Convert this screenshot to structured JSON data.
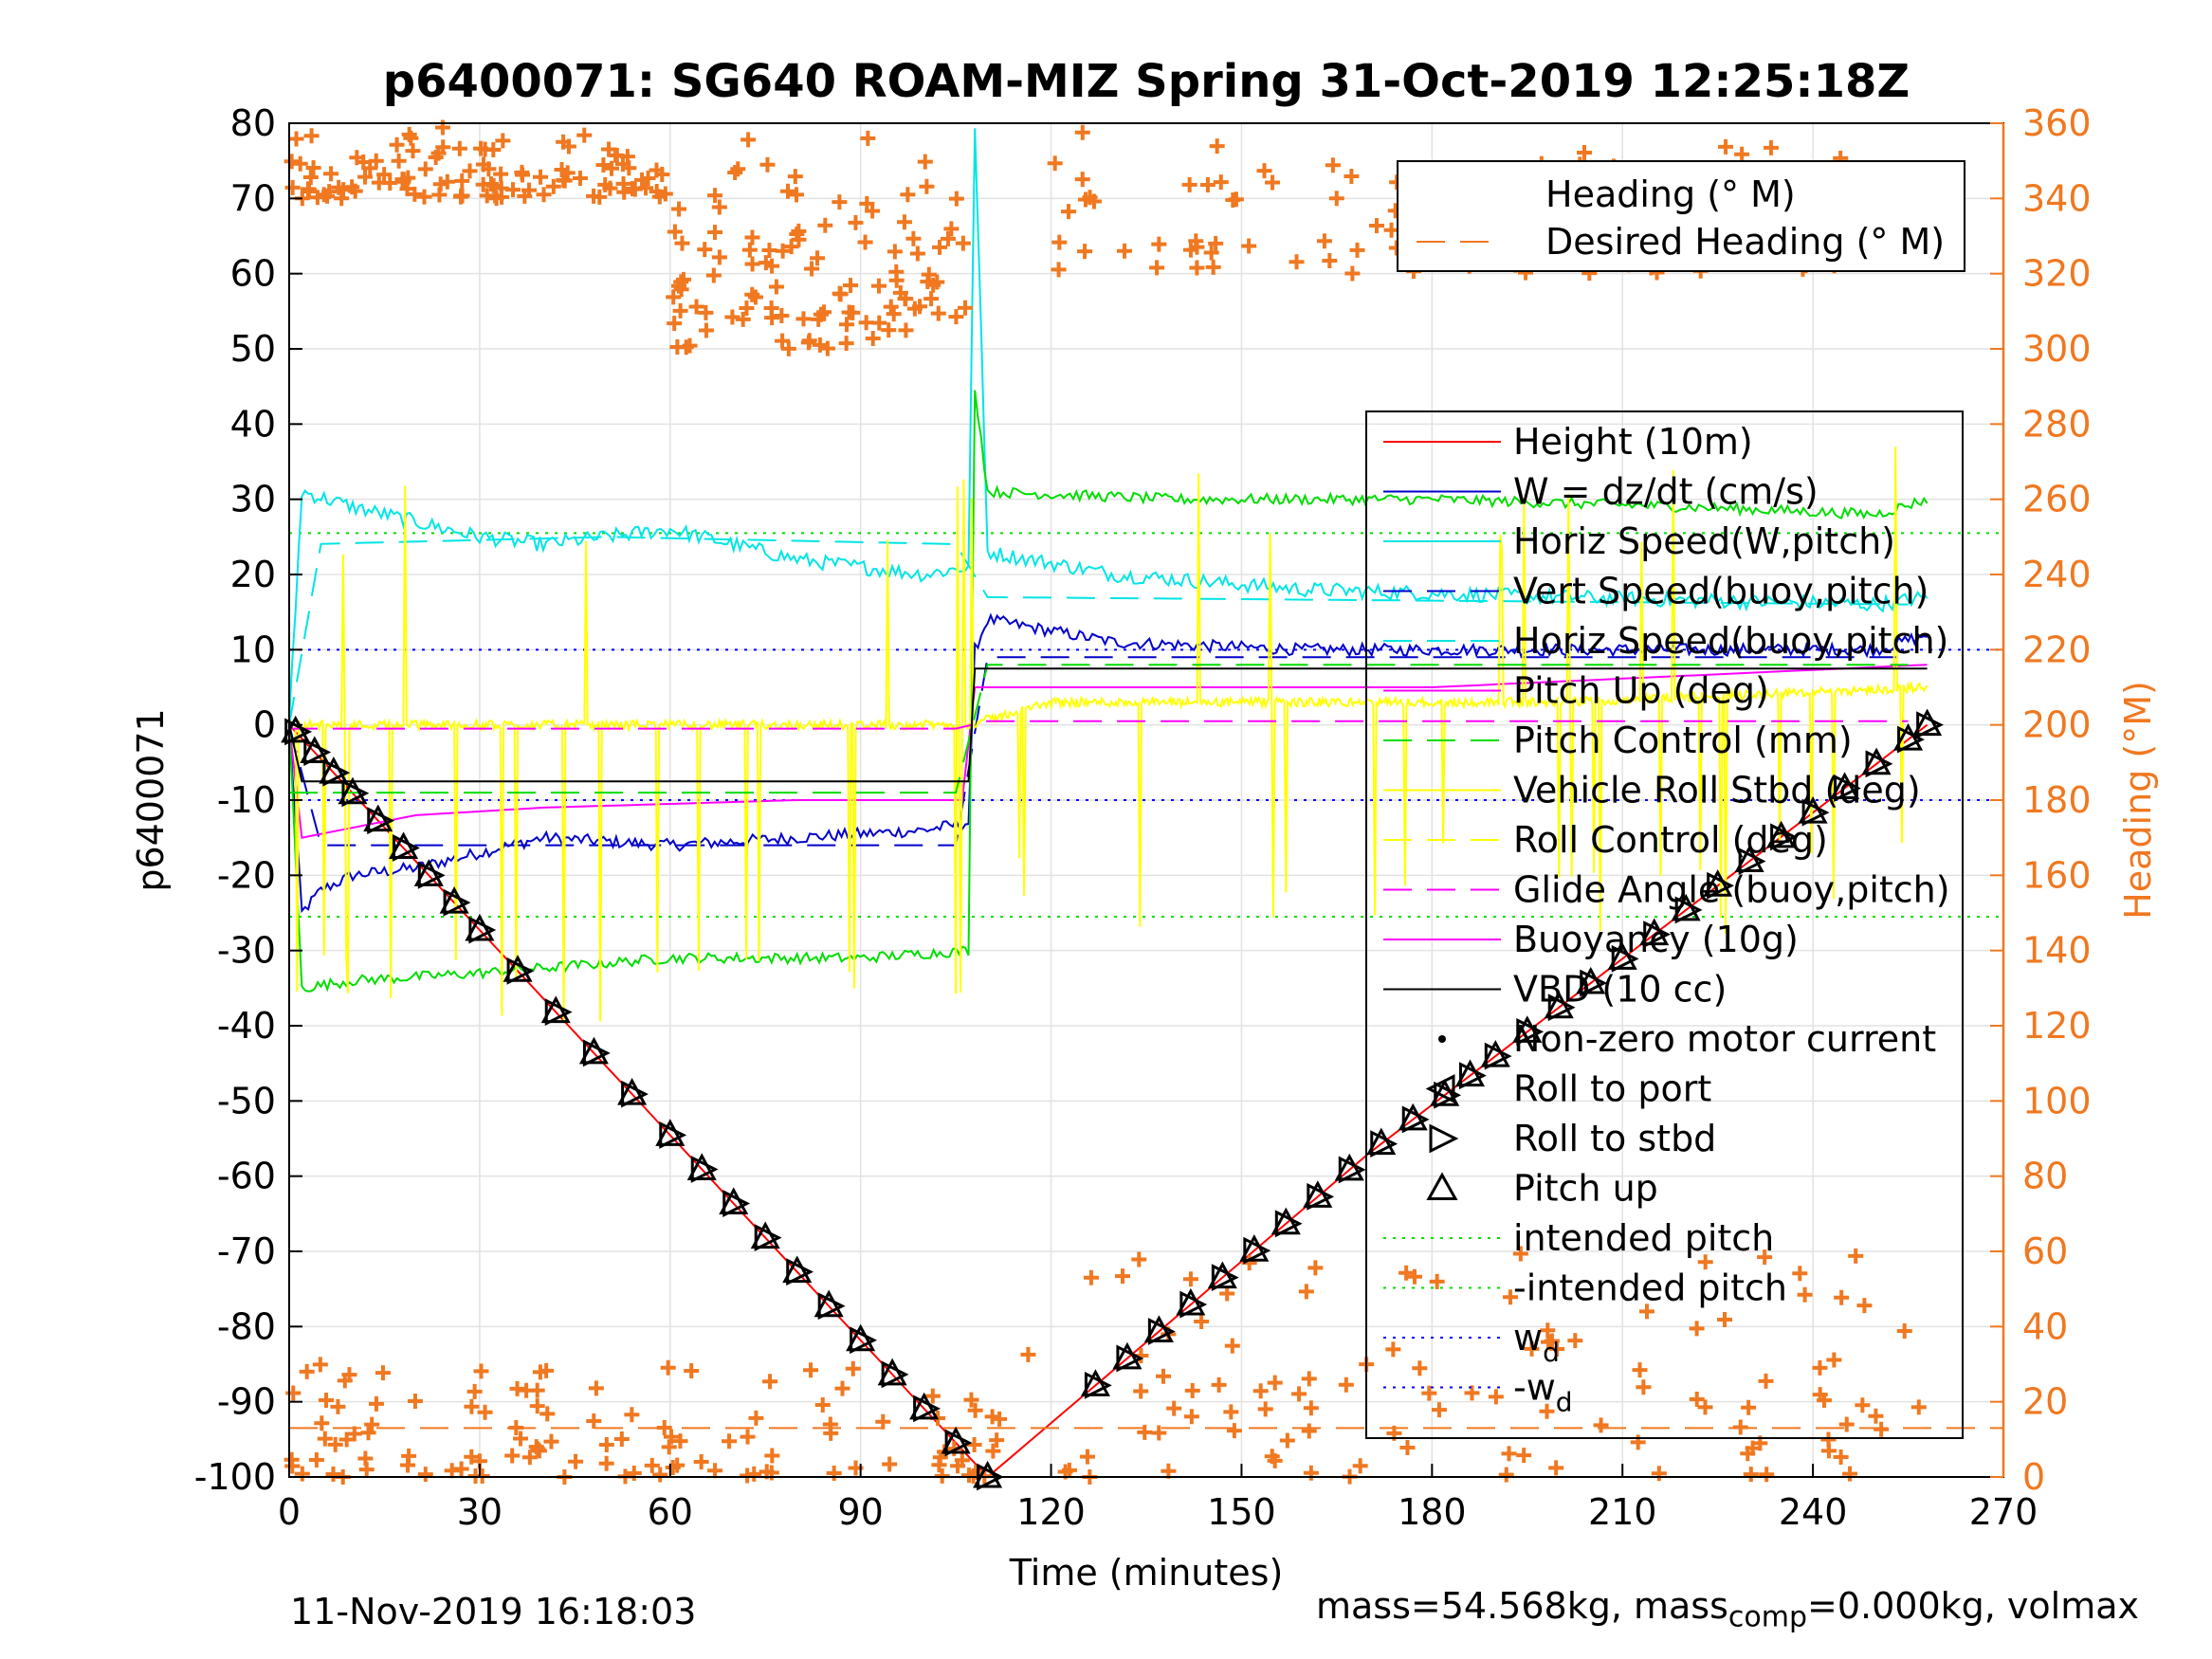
{
  "chart_data": {
    "type": "line",
    "title": "p6400071: SG640 ROAM-MIZ Spring 31-Oct-2019 12:25:18Z",
    "xlabel": "Time (minutes)",
    "ylabel": "p6400071",
    "y2label": "Heading (°M)",
    "xlim": [
      0,
      270
    ],
    "ylim": [
      -100,
      80
    ],
    "y2lim": [
      0,
      360
    ],
    "xticks": [
      0,
      30,
      60,
      90,
      120,
      150,
      180,
      210,
      240,
      270
    ],
    "yticks": [
      -100,
      -90,
      -80,
      -70,
      -60,
      -50,
      -40,
      -30,
      -20,
      -10,
      0,
      10,
      20,
      30,
      40,
      50,
      60,
      70,
      80
    ],
    "y2ticks": [
      0,
      20,
      40,
      60,
      80,
      100,
      120,
      140,
      160,
      180,
      200,
      220,
      240,
      260,
      280,
      300,
      320,
      340,
      360
    ],
    "grid": true,
    "legend_placement": "right",
    "heading_legend": [
      "Heading (° M)",
      "Desired Heading (° M)"
    ],
    "legend": [
      "Height (10m)",
      "W = dz/dt (cm/s)",
      "Horiz Speed(W,pitch)",
      "Vert Speed(buoy,pitch)",
      "Horiz Speed(buoy,pitch)",
      "Pitch Up (deg)",
      "Pitch Control (mm)",
      "Vehicle Roll Stbd (deg)",
      "Roll Control (deg)",
      "Glide Angle (buoy,pitch)",
      "Buoyancy (10g)",
      "VBD (10 cc)",
      "Non-zero motor current",
      "Roll to port",
      "Roll to stbd",
      "Pitch up",
      "intended pitch",
      "-intended pitch",
      "w",
      "-w"
    ],
    "legend_subscript": "d",
    "colors": {
      "height": "#ff0000",
      "w": "#0000cc",
      "horiz": "#00e5e5",
      "pitch_up": "#ff00ff",
      "pitch_control": "#00dd00",
      "roll": "#ffff00",
      "heading": "#f07820",
      "vbd": "#000000",
      "heading_axis": "#f07820"
    },
    "series": [
      {
        "name": "Height (10m)",
        "x": [
          0,
          110,
          170,
          258
        ],
        "values": [
          0,
          -100,
          -57,
          0
        ]
      },
      {
        "name": "W = dz/dt (cm/s)",
        "x": [
          0,
          2,
          5,
          10,
          20,
          30,
          40,
          60,
          80,
          100,
          107,
          108,
          110,
          130,
          160,
          200,
          250,
          258
        ],
        "values": [
          0,
          -25,
          -22,
          -20,
          -19,
          -17,
          -15,
          -16,
          -15,
          -14,
          -13,
          10,
          14,
          11,
          10,
          10,
          10,
          12
        ]
      },
      {
        "name": "Horiz Speed(W,pitch)",
        "x": [
          0,
          2,
          10,
          20,
          30,
          40,
          60,
          80,
          100,
          107,
          108,
          110,
          130,
          160,
          200,
          250,
          258
        ],
        "values": [
          0,
          31,
          29,
          27,
          25,
          24,
          26,
          22,
          20,
          21,
          80,
          23,
          20,
          18,
          17,
          16,
          17
        ]
      },
      {
        "name": "Vert Speed(buoy,pitch)",
        "x": [
          0,
          2,
          50,
          107,
          108,
          258
        ],
        "values": [
          0,
          -16,
          -16,
          -16,
          9,
          9
        ]
      },
      {
        "name": "Horiz Speed(buoy,pitch)",
        "x": [
          0,
          2,
          50,
          107,
          108,
          258
        ],
        "values": [
          0,
          24,
          25,
          24,
          17,
          16
        ]
      },
      {
        "name": "Pitch Up (deg)",
        "x": [
          0,
          2,
          20,
          40,
          80,
          107,
          108,
          180,
          258
        ],
        "values": [
          0,
          -15,
          -12,
          -11,
          -10,
          -10,
          5,
          5,
          8
        ]
      },
      {
        "name": "Pitch Control (mm)",
        "x": [
          0,
          2,
          10,
          30,
          60,
          90,
          107,
          108,
          110,
          140,
          180,
          220,
          250,
          258
        ],
        "values": [
          0,
          -35,
          -34,
          -33,
          -31,
          -31,
          -30,
          45,
          31,
          30,
          30,
          29,
          28,
          30
        ]
      },
      {
        "name": "Vehicle Roll Stbd (deg)",
        "x": [
          0,
          5,
          20,
          60,
          107,
          120,
          200,
          258
        ],
        "values": [
          0,
          0,
          0,
          0,
          0,
          3,
          3,
          5
        ]
      },
      {
        "name": "Glide Angle (buoy,pitch)",
        "x": [
          0,
          107,
          108,
          258
        ],
        "values": [
          -0.5,
          -0.5,
          0.5,
          0.5
        ]
      },
      {
        "name": "Buoyancy (10g)",
        "x": [
          0,
          107,
          108,
          258
        ],
        "values": [
          -9,
          -9,
          8,
          8
        ]
      },
      {
        "name": "VBD (10 cc)",
        "x": [
          0,
          2,
          107,
          108,
          258
        ],
        "values": [
          0,
          -7.5,
          -7.5,
          7.5,
          7.5
        ]
      }
    ],
    "reference_lines": [
      {
        "name": "intended pitch",
        "value": 25.5
      },
      {
        "name": "-intended pitch",
        "value": -25.5
      },
      {
        "name": "w_d",
        "value": 10
      },
      {
        "name": "-w_d",
        "value": -10
      }
    ],
    "heading_clusters": [
      {
        "x": [
          0,
          60
        ],
        "heading": [
          340,
          360
        ]
      },
      {
        "x": [
          60,
          107
        ],
        "heading": [
          300,
          360
        ]
      },
      {
        "x": [
          120,
          258
        ],
        "heading": [
          320,
          360
        ]
      },
      {
        "x": [
          0,
          110
        ],
        "heading": [
          0,
          30
        ]
      },
      {
        "x": [
          110,
          258
        ],
        "heading": [
          0,
          60
        ]
      }
    ],
    "pitch_up_markers_x": [
      1,
      4,
      7,
      10,
      14,
      18,
      22,
      26,
      30,
      36,
      42,
      48,
      54,
      60,
      65,
      70,
      75,
      80,
      85,
      90,
      95,
      100,
      105,
      110,
      127,
      132,
      137,
      142,
      147,
      152,
      157,
      162,
      167,
      172,
      177,
      182,
      186,
      190,
      195,
      200,
      205,
      210,
      215,
      220,
      225,
      230,
      235,
      240,
      245,
      250,
      255,
      258
    ]
  },
  "footer": {
    "left": "11-Nov-2019 16:18:03",
    "right_prefix": "mass=54.568kg, mass",
    "right_sub": "comp",
    "right_suffix": "=0.000kg, volmax"
  }
}
